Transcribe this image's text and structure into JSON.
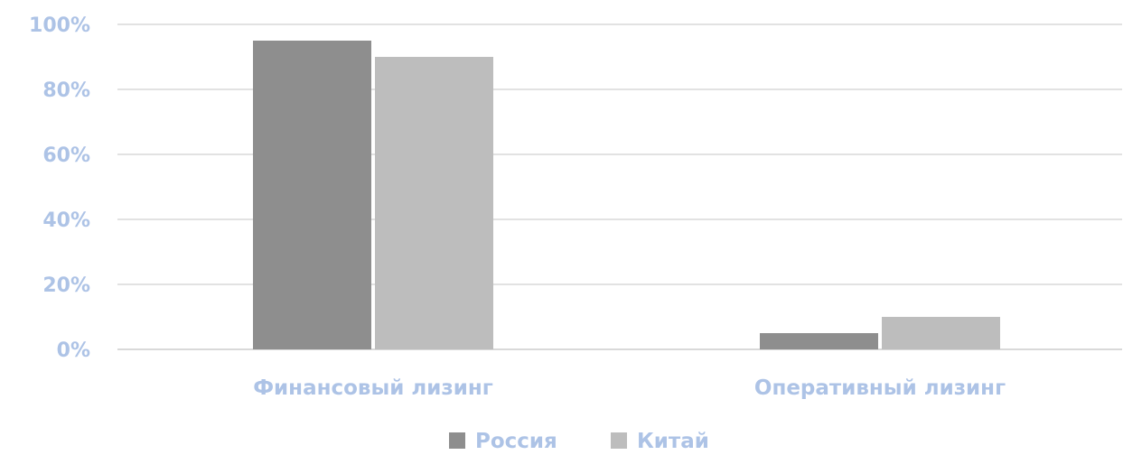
{
  "chart_data": {
    "type": "bar",
    "categories": [
      "Финансовый лизинг",
      "Оперативный лизинг"
    ],
    "series": [
      {
        "name": "Россия",
        "values": [
          95,
          5
        ],
        "color": "#8e8e8e"
      },
      {
        "name": "Китай",
        "values": [
          90,
          10
        ],
        "color": "#bdbdbd"
      }
    ],
    "ylim": [
      0,
      100
    ],
    "yticks": [
      0,
      20,
      40,
      60,
      80,
      100
    ],
    "ytick_labels": [
      "0%",
      "20%",
      "40%",
      "60%",
      "80%",
      "100%"
    ],
    "title": "",
    "xlabel": "",
    "ylabel": "",
    "grid": true,
    "legend_position": "bottom",
    "colors": {
      "text": "#adc3e6",
      "grid": "#d9d9d9"
    }
  }
}
